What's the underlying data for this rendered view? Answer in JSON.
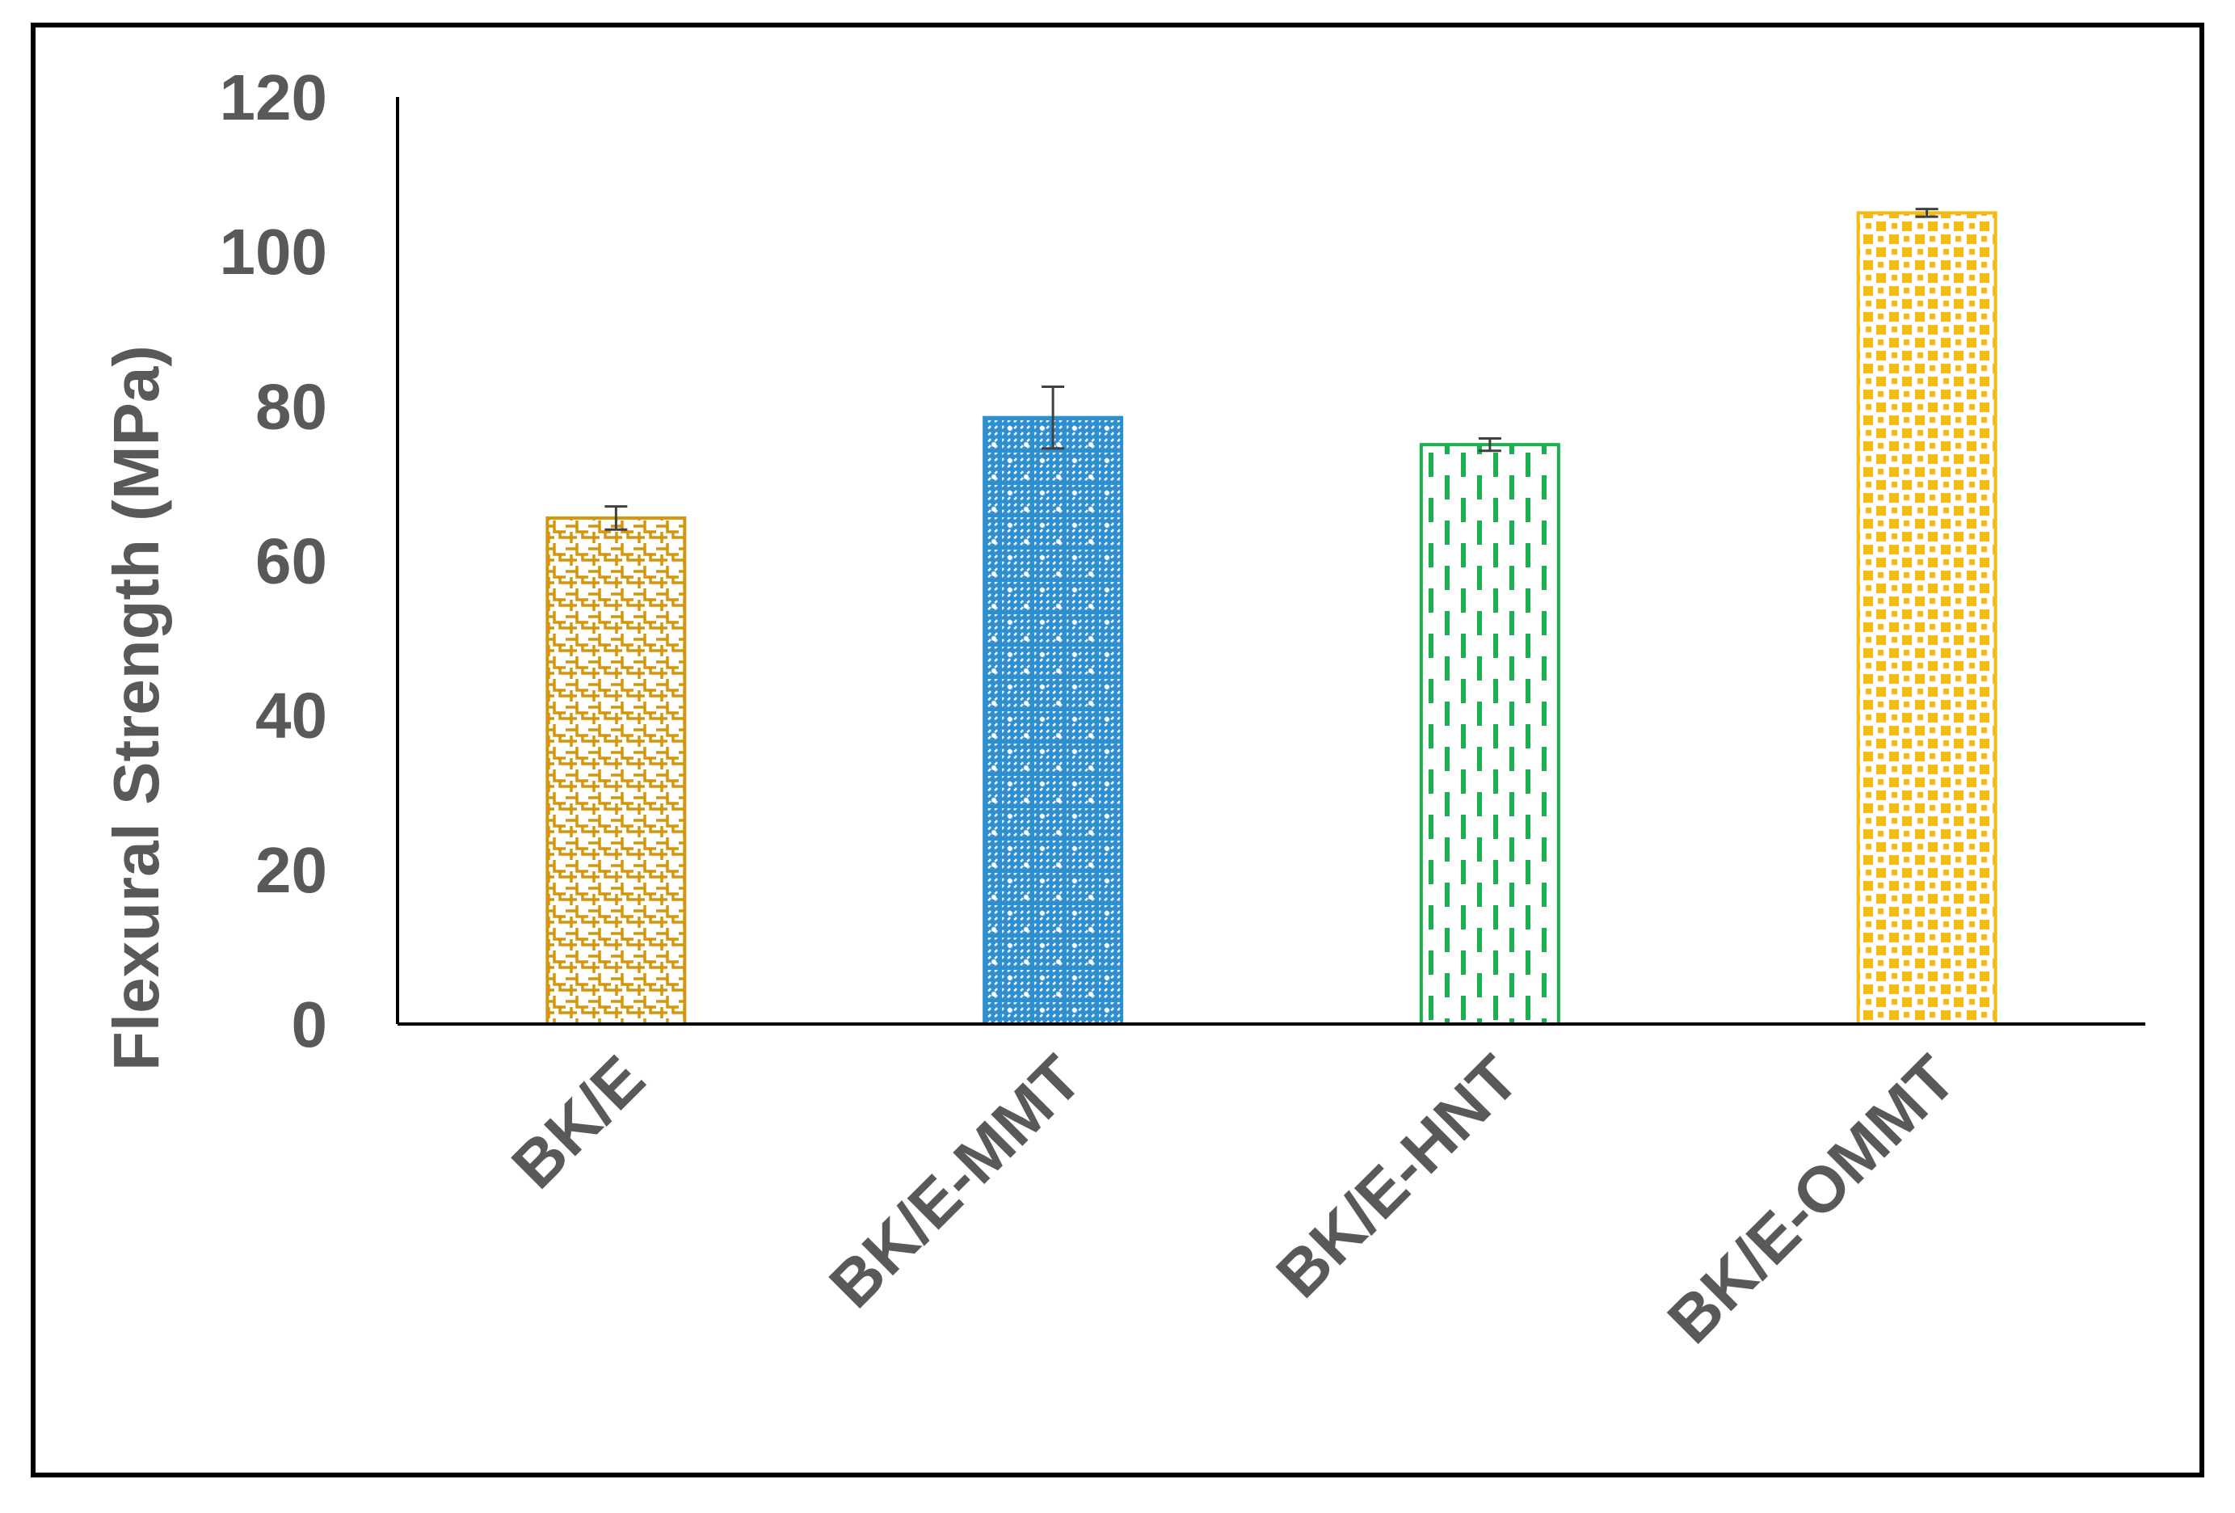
{
  "chart_data": {
    "type": "bar",
    "title": "",
    "xlabel": "",
    "ylabel": "Flexural Strength (MPa)",
    "ylim": [
      0,
      120
    ],
    "yticks": [
      0,
      20,
      40,
      60,
      80,
      100,
      120
    ],
    "grid": false,
    "legend": "none",
    "categories": [
      "BK/E",
      "BK/E-MMT",
      "BK/E-HNT",
      "BK/E-OMMT"
    ],
    "values": [
      65.5,
      78.5,
      75,
      105
    ],
    "errors": [
      1.5,
      4,
      0.8,
      0.5
    ],
    "colors": [
      "#D4960A",
      "#2E8FD0",
      "#1BAF50",
      "#F4BB14"
    ],
    "patterns": [
      "weave",
      "dotted-grid",
      "dashed-vertical",
      "checker-squares"
    ]
  }
}
